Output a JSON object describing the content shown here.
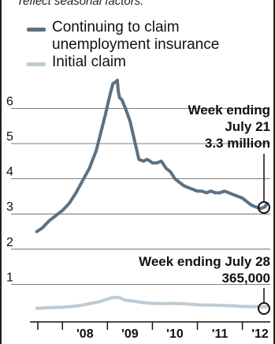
{
  "intro_partial": "reflect seasonal factors.",
  "legend": [
    {
      "name": "Continuing to claim unemployment insurance",
      "line1": "Continuing to claim",
      "line2": "unemployment insurance",
      "color": "#5b7184"
    },
    {
      "name": "Initial claim",
      "line1": "Initial claim",
      "color": "#bccbd4"
    }
  ],
  "annotations": {
    "continuing": {
      "line1": "Week ending",
      "line2": "July 21",
      "line3": "3.3 million"
    },
    "initial": {
      "line1": "Week ending July 28",
      "line2": "365,000"
    }
  },
  "chart_data": {
    "type": "line",
    "ylim": [
      0,
      7
    ],
    "yticks": [
      1,
      2,
      3,
      4,
      5,
      6
    ],
    "ytick_labels": [
      "1",
      "2",
      "3",
      "4",
      "5",
      "6"
    ],
    "x_tick_labels": [
      "'08",
      "'09",
      "'10",
      "'11",
      "'12"
    ],
    "x_tick_years": [
      2008,
      2009,
      2010,
      2011,
      2012
    ],
    "xlim": [
      2007.4,
      2012.62
    ],
    "series": [
      {
        "name": "Continuing to claim unemployment insurance",
        "color": "#5b7184",
        "x": [
          2007.43,
          2007.55,
          2007.7,
          2007.85,
          2008.0,
          2008.15,
          2008.3,
          2008.45,
          2008.6,
          2008.75,
          2008.85,
          2008.95,
          2009.05,
          2009.12,
          2009.18,
          2009.22,
          2009.24,
          2009.27,
          2009.32,
          2009.4,
          2009.5,
          2009.6,
          2009.7,
          2009.8,
          2009.88,
          2009.95,
          2010.0,
          2010.1,
          2010.2,
          2010.3,
          2010.4,
          2010.5,
          2010.6,
          2010.7,
          2010.8,
          2010.9,
          2011.0,
          2011.1,
          2011.2,
          2011.3,
          2011.4,
          2011.5,
          2011.6,
          2011.7,
          2011.8,
          2011.9,
          2012.0,
          2012.1,
          2012.2,
          2012.3,
          2012.4,
          2012.5,
          2012.55
        ],
        "values": [
          2.5,
          2.6,
          2.8,
          2.95,
          3.1,
          3.3,
          3.6,
          3.95,
          4.3,
          4.8,
          5.3,
          5.8,
          6.35,
          6.7,
          6.75,
          6.8,
          6.5,
          6.3,
          6.25,
          6.0,
          5.65,
          5.1,
          4.55,
          4.5,
          4.55,
          4.5,
          4.45,
          4.45,
          4.5,
          4.3,
          4.2,
          4.0,
          3.9,
          3.8,
          3.75,
          3.7,
          3.65,
          3.65,
          3.6,
          3.65,
          3.6,
          3.6,
          3.65,
          3.6,
          3.55,
          3.5,
          3.45,
          3.35,
          3.25,
          3.2,
          3.15,
          3.2,
          3.3
        ]
      },
      {
        "name": "Initial claim",
        "color": "#bccbd4",
        "x": [
          2007.43,
          2007.6,
          2007.8,
          2008.0,
          2008.2,
          2008.4,
          2008.6,
          2008.8,
          2009.0,
          2009.1,
          2009.25,
          2009.4,
          2009.6,
          2009.8,
          2010.0,
          2010.2,
          2010.4,
          2010.6,
          2010.8,
          2011.0,
          2011.2,
          2011.4,
          2011.6,
          2011.8,
          2012.0,
          2012.2,
          2012.4,
          2012.55
        ],
        "values": [
          0.32,
          0.33,
          0.34,
          0.35,
          0.37,
          0.4,
          0.45,
          0.5,
          0.58,
          0.62,
          0.63,
          0.55,
          0.52,
          0.48,
          0.46,
          0.45,
          0.46,
          0.45,
          0.44,
          0.42,
          0.41,
          0.41,
          0.4,
          0.39,
          0.37,
          0.37,
          0.36,
          0.37
        ]
      }
    ]
  }
}
